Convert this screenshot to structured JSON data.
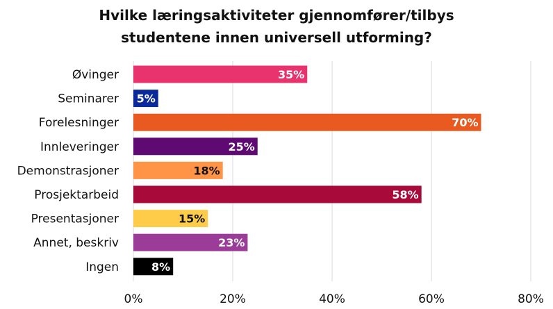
{
  "chart_data": {
    "type": "bar",
    "orientation": "horizontal",
    "title_lines": [
      "Hvilke læringsaktiviteter gjennomfører/tilbys",
      "studentene innen universell utforming?"
    ],
    "categories": [
      "Øvinger",
      "Seminarer",
      "Forelesninger",
      "Innleveringer",
      "Demonstrasjoner",
      "Prosjektarbeid",
      "Presentasjoner",
      "Annet, beskriv",
      "Ingen"
    ],
    "values": [
      35,
      5,
      70,
      25,
      18,
      58,
      15,
      23,
      8
    ],
    "value_labels": [
      "35%",
      "5%",
      "70%",
      "25%",
      "18%",
      "58%",
      "15%",
      "23%",
      "8%"
    ],
    "colors": [
      "#e8336e",
      "#0a2a9c",
      "#e85a1f",
      "#5f0a73",
      "#ff9447",
      "#a80a3a",
      "#ffcc4a",
      "#9b3c98",
      "#000000"
    ],
    "label_colors": [
      "#ffffff",
      "#ffffff",
      "#ffffff",
      "#ffffff",
      "#111111",
      "#ffffff",
      "#111111",
      "#ffffff",
      "#ffffff"
    ],
    "xlim": [
      0,
      80
    ],
    "xticks": [
      0,
      20,
      40,
      60,
      80
    ],
    "xtick_labels": [
      "0%",
      "20%",
      "40%",
      "60%",
      "80%"
    ],
    "grid": true,
    "gridline_color": "#d9d9d9"
  }
}
